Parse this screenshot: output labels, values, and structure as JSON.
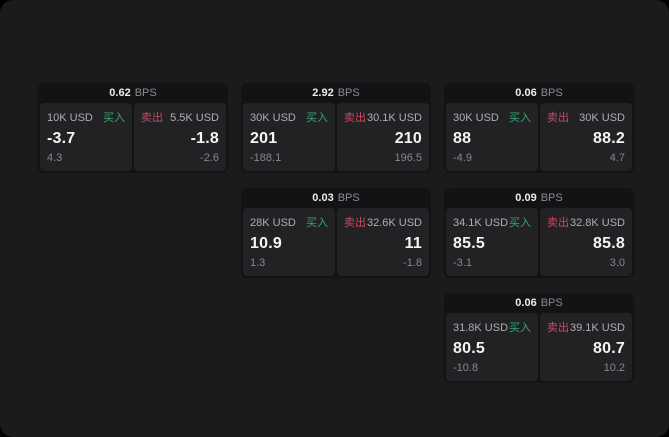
{
  "unit": "BPS",
  "labels": {
    "buy": "买入",
    "sell": "卖出"
  },
  "colors": {
    "buy_green": "#35a96e",
    "sell_red": "#cb4860",
    "window_bg": "#1b1b1d",
    "card_bg": "#131315",
    "panel_bg": "#222225"
  },
  "cards": [
    {
      "bps": "0.62",
      "buy": {
        "amount": "10K USD",
        "value": "-3.7",
        "sub": "4.3"
      },
      "sell": {
        "amount": "5.5K USD",
        "value": "-1.8",
        "sub": "-2.6"
      }
    },
    {
      "bps": "2.92",
      "buy": {
        "amount": "30K USD",
        "value": "201",
        "sub": "-188.1"
      },
      "sell": {
        "amount": "30.1K USD",
        "value": "210",
        "sub": "196.5"
      }
    },
    {
      "bps": "0.06",
      "buy": {
        "amount": "30K USD",
        "value": "88",
        "sub": "-4.9"
      },
      "sell": {
        "amount": "30K USD",
        "value": "88.2",
        "sub": "4.7"
      }
    },
    {
      "bps": "0.03",
      "buy": {
        "amount": "28K USD",
        "value": "10.9",
        "sub": "1.3"
      },
      "sell": {
        "amount": "32.6K USD",
        "value": "11",
        "sub": "-1.8"
      }
    },
    {
      "bps": "0.09",
      "buy": {
        "amount": "34.1K USD",
        "value": "85.5",
        "sub": "-3.1"
      },
      "sell": {
        "amount": "32.8K USD",
        "value": "85.8",
        "sub": "3.0"
      }
    },
    {
      "bps": "0.06",
      "buy": {
        "amount": "31.8K USD",
        "value": "80.5",
        "sub": "-10.8"
      },
      "sell": {
        "amount": "39.1K USD",
        "value": "80.7",
        "sub": "10.2"
      }
    }
  ]
}
